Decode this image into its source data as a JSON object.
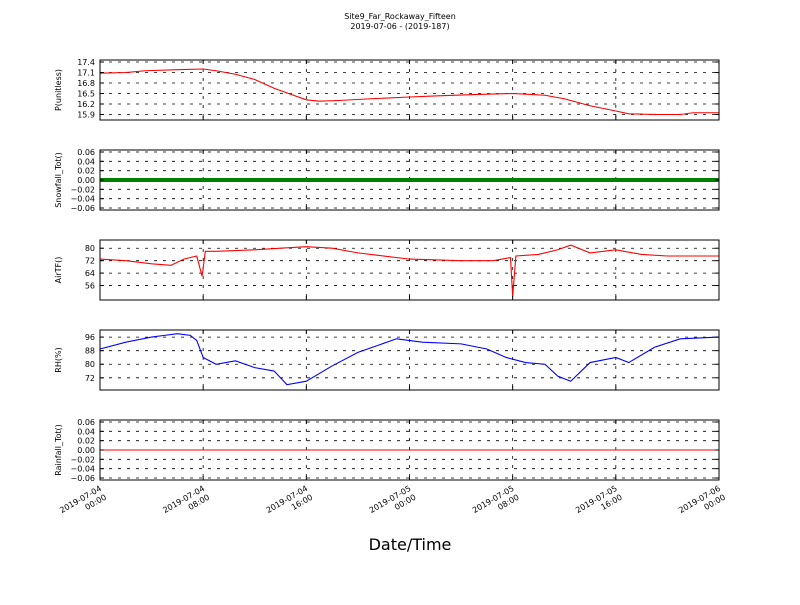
{
  "chart_data": {
    "type": "line",
    "title": "Site9_Far_Rockaway_Fifteen",
    "subtitle": "2019-07-06 - (2019-187)",
    "xlabel": "Date/Time",
    "x_ticks": [
      {
        "line1": "2019-07-04",
        "line2": "00:00"
      },
      {
        "line1": "2019-07-04",
        "line2": "08:00"
      },
      {
        "line1": "2019-07-04",
        "line2": "16:00"
      },
      {
        "line1": "2019-07-05",
        "line2": "00:00"
      },
      {
        "line1": "2019-07-05",
        "line2": "08:00"
      },
      {
        "line1": "2019-07-05",
        "line2": "16:00"
      },
      {
        "line1": "2019-07-06",
        "line2": "00:00"
      }
    ],
    "xlim": [
      "2019-07-04 00:00",
      "2019-07-06 00:00"
    ],
    "grid": true,
    "panels": [
      {
        "ylabel": "P(unitless)",
        "color": "#ff0000",
        "ylim": [
          15.8,
          17.4
        ],
        "yticks": [
          "17.4",
          "17.1",
          "16.8",
          "16.5",
          "16.2",
          "15.9"
        ],
        "ytick_values": [
          17.4,
          17.1,
          16.8,
          16.5,
          16.2,
          15.9
        ],
        "series": {
          "x": [
            "2019-07-04 00:00",
            "2019-07-04 02:00",
            "2019-07-04 03:30",
            "2019-07-04 06:00",
            "2019-07-04 08:00",
            "2019-07-04 09:00",
            "2019-07-04 10:30",
            "2019-07-04 12:00",
            "2019-07-04 13:30",
            "2019-07-04 15:00",
            "2019-07-04 16:00",
            "2019-07-04 17:00",
            "2019-07-04 18:30",
            "2019-07-04 21:00",
            "2019-07-05 00:00",
            "2019-07-05 02:00",
            "2019-07-05 05:00",
            "2019-07-05 08:00",
            "2019-07-05 09:00",
            "2019-07-05 10:30",
            "2019-07-05 12:00",
            "2019-07-05 14:00",
            "2019-07-05 16:00",
            "2019-07-05 17:00",
            "2019-07-05 19:00",
            "2019-07-05 21:00",
            "2019-07-05 22:00",
            "2019-07-06 00:00"
          ],
          "y": [
            17.08,
            17.1,
            17.15,
            17.18,
            17.2,
            17.15,
            17.05,
            16.9,
            16.65,
            16.45,
            16.32,
            16.28,
            16.3,
            16.35,
            16.4,
            16.43,
            16.47,
            16.5,
            16.48,
            16.45,
            16.35,
            16.15,
            16.0,
            15.92,
            15.9,
            15.9,
            15.95,
            15.95
          ]
        }
      },
      {
        "ylabel": "Snowfall_Tot()",
        "color": "#008000",
        "line_width": 4,
        "ylim": [
          -0.06,
          0.06
        ],
        "yticks": [
          "0.06",
          "0.04",
          "0.02",
          "0.00",
          "−0.02",
          "−0.04",
          "−0.06"
        ],
        "ytick_values": [
          0.06,
          0.04,
          0.02,
          0.0,
          -0.02,
          -0.04,
          -0.06
        ],
        "series": {
          "x": [
            "2019-07-04 00:00",
            "2019-07-06 00:00"
          ],
          "y": [
            0.0,
            0.0
          ]
        }
      },
      {
        "ylabel": "AirTF()",
        "color": "#ff0000",
        "ylim": [
          48,
          84
        ],
        "yticks": [
          "80",
          "72",
          "64",
          "56"
        ],
        "ytick_values": [
          80,
          72,
          64,
          56
        ],
        "series": {
          "x": [
            "2019-07-04 00:00",
            "2019-07-04 02:00",
            "2019-07-04 04:00",
            "2019-07-04 05:30",
            "2019-07-04 06:30",
            "2019-07-04 07:30",
            "2019-07-04 07:55",
            "2019-07-04 08:10",
            "2019-07-04 09:00",
            "2019-07-04 12:00",
            "2019-07-04 14:00",
            "2019-07-04 16:00",
            "2019-07-04 18:00",
            "2019-07-04 20:00",
            "2019-07-05 00:00",
            "2019-07-05 04:00",
            "2019-07-05 06:30",
            "2019-07-05 07:50",
            "2019-07-05 08:00",
            "2019-07-05 08:15",
            "2019-07-05 10:00",
            "2019-07-05 11:30",
            "2019-07-05 12:30",
            "2019-07-05 14:00",
            "2019-07-05 16:00",
            "2019-07-05 18:00",
            "2019-07-05 20:00",
            "2019-07-06 00:00"
          ],
          "y": [
            73,
            72,
            70,
            69,
            73,
            75,
            62,
            78,
            78,
            79,
            80,
            81,
            80,
            77,
            73,
            72,
            72,
            74,
            49,
            75,
            76,
            79,
            82,
            77,
            79,
            76,
            75,
            75
          ]
        }
      },
      {
        "ylabel": "RH(%)",
        "color": "#0000ff",
        "ylim": [
          66,
          99
        ],
        "yticks": [
          "96",
          "88",
          "80",
          "72"
        ],
        "ytick_values": [
          96,
          88,
          80,
          72
        ],
        "series": {
          "x": [
            "2019-07-04 00:00",
            "2019-07-04 02:00",
            "2019-07-04 04:00",
            "2019-07-04 05:00",
            "2019-07-04 06:00",
            "2019-07-04 07:00",
            "2019-07-04 07:30",
            "2019-07-04 08:00",
            "2019-07-04 09:00",
            "2019-07-04 10:30",
            "2019-07-04 12:00",
            "2019-07-04 13:30",
            "2019-07-04 14:30",
            "2019-07-04 16:00",
            "2019-07-04 18:00",
            "2019-07-04 20:00",
            "2019-07-04 23:00",
            "2019-07-05 01:00",
            "2019-07-05 04:00",
            "2019-07-05 06:00",
            "2019-07-05 07:30",
            "2019-07-05 09:00",
            "2019-07-05 10:30",
            "2019-07-05 11:30",
            "2019-07-05 12:30",
            "2019-07-05 14:00",
            "2019-07-05 16:00",
            "2019-07-05 17:00",
            "2019-07-05 19:00",
            "2019-07-05 21:00",
            "2019-07-06 00:00"
          ],
          "y": [
            89,
            93,
            96,
            97,
            98,
            97,
            94,
            84,
            80,
            82,
            78,
            76,
            68,
            70,
            79,
            87,
            95,
            93,
            92,
            89,
            84,
            81,
            80,
            73,
            70,
            81,
            84,
            81,
            90,
            95,
            96
          ]
        }
      },
      {
        "ylabel": "Rainfall_Tot()",
        "color": "#ff0000",
        "ylim": [
          -0.06,
          0.06
        ],
        "yticks": [
          "0.06",
          "0.04",
          "0.02",
          "0.00",
          "−0.02",
          "−0.04",
          "−0.06"
        ],
        "ytick_values": [
          0.06,
          0.04,
          0.02,
          0.0,
          -0.02,
          -0.04,
          -0.06
        ],
        "series": {
          "x": [
            "2019-07-04 00:00",
            "2019-07-06 00:00"
          ],
          "y": [
            0.0,
            0.0
          ]
        }
      }
    ]
  }
}
